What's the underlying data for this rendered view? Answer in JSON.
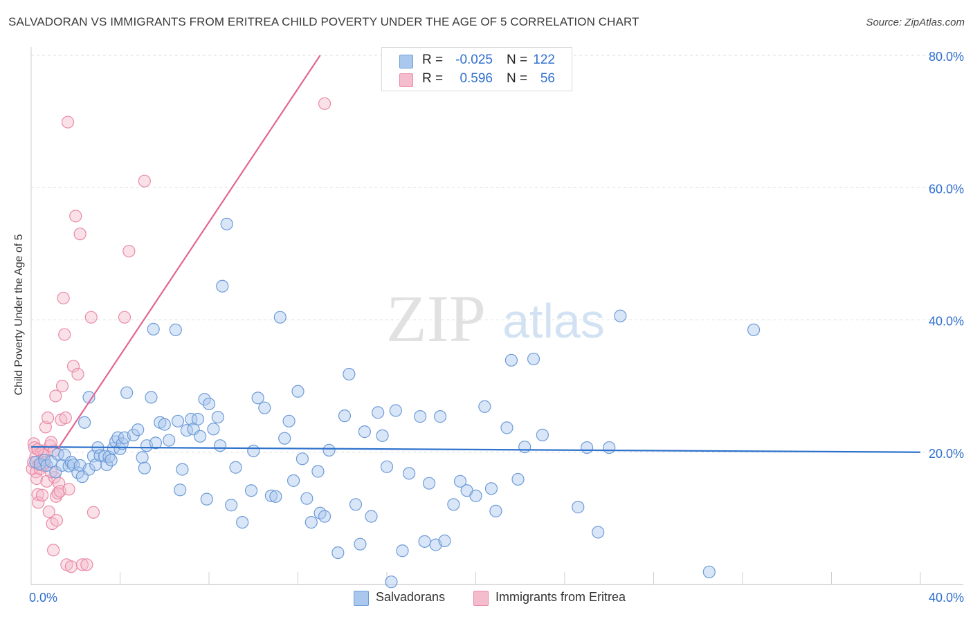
{
  "title": "SALVADORAN VS IMMIGRANTS FROM ERITREA CHILD POVERTY UNDER THE AGE OF 5 CORRELATION CHART",
  "source": "Source: ZipAtlas.com",
  "watermark": {
    "zip": "ZIP",
    "atlas": "atlas"
  },
  "legend_top": [
    {
      "r_label": "R =",
      "r_value": "-0.025",
      "n_label": "N =",
      "n_value": "122"
    },
    {
      "r_label": "R =",
      "r_value": "0.596",
      "n_label": "N =",
      "n_value": "56"
    }
  ],
  "legend_bottom": [
    {
      "label": "Salvadorans"
    },
    {
      "label": "Immigrants from Eritrea"
    }
  ],
  "colors": {
    "blue_fill": "#aac8ee",
    "blue_stroke": "#6d9bd8",
    "blue_line": "#2e72cc",
    "pink_fill": "#f5bccd",
    "pink_stroke": "#ea8aa7",
    "pink_line": "#e26592",
    "axis_text": "#2f6fcf",
    "grid": "#dddddd"
  },
  "chart_data": {
    "type": "scatter",
    "title": "SALVADORAN VS IMMIGRANTS FROM ERITREA CHILD POVERTY UNDER THE AGE OF 5 CORRELATION CHART",
    "xlabel": "",
    "ylabel": "Child Poverty Under the Age of 5",
    "xlim": [
      0,
      40
    ],
    "ylim": [
      0,
      80
    ],
    "x_tick_labels": [
      "0.0%",
      "40.0%"
    ],
    "y_tick_labels": [
      "20.0%",
      "40.0%",
      "60.0%",
      "80.0%"
    ],
    "y_tick_values": [
      20,
      40,
      60,
      80
    ],
    "grid": true,
    "series": [
      {
        "name": "Salvadorans",
        "color": "#aac8ee",
        "trendline": {
          "x": [
            0,
            40
          ],
          "y": [
            20.8,
            20.0
          ]
        },
        "points": [
          [
            0.2,
            18.5
          ],
          [
            0.4,
            18.2
          ],
          [
            0.6,
            18.8
          ],
          [
            0.7,
            18.0
          ],
          [
            0.9,
            18.6
          ],
          [
            1.1,
            17.0
          ],
          [
            1.2,
            19.7
          ],
          [
            1.4,
            18.0
          ],
          [
            1.5,
            19.6
          ],
          [
            1.7,
            17.9
          ],
          [
            1.8,
            18.5
          ],
          [
            1.9,
            18.1
          ],
          [
            2.1,
            16.9
          ],
          [
            2.2,
            18.0
          ],
          [
            2.3,
            16.3
          ],
          [
            2.4,
            24.5
          ],
          [
            2.6,
            17.4
          ],
          [
            2.6,
            28.3
          ],
          [
            2.8,
            19.4
          ],
          [
            2.9,
            18.1
          ],
          [
            3.0,
            20.7
          ],
          [
            3.1,
            19.5
          ],
          [
            3.3,
            19.4
          ],
          [
            3.4,
            18.1
          ],
          [
            3.5,
            19.3
          ],
          [
            3.6,
            18.8
          ],
          [
            3.7,
            20.6
          ],
          [
            3.8,
            21.6
          ],
          [
            3.9,
            22.2
          ],
          [
            4.0,
            20.5
          ],
          [
            4.1,
            21.3
          ],
          [
            4.2,
            22.2
          ],
          [
            4.3,
            29.0
          ],
          [
            4.6,
            22.6
          ],
          [
            4.8,
            23.4
          ],
          [
            5.0,
            19.2
          ],
          [
            5.1,
            17.6
          ],
          [
            5.2,
            21.0
          ],
          [
            5.4,
            28.3
          ],
          [
            5.5,
            38.6
          ],
          [
            5.6,
            21.4
          ],
          [
            5.8,
            24.5
          ],
          [
            6.0,
            24.2
          ],
          [
            6.2,
            21.8
          ],
          [
            6.5,
            38.5
          ],
          [
            6.6,
            24.7
          ],
          [
            6.7,
            14.3
          ],
          [
            6.8,
            17.4
          ],
          [
            7.0,
            23.3
          ],
          [
            7.2,
            25.0
          ],
          [
            7.3,
            23.5
          ],
          [
            7.5,
            25.0
          ],
          [
            7.6,
            22.4
          ],
          [
            7.8,
            28.0
          ],
          [
            7.9,
            12.9
          ],
          [
            8.0,
            27.3
          ],
          [
            8.2,
            23.5
          ],
          [
            8.4,
            25.3
          ],
          [
            8.5,
            21.0
          ],
          [
            8.6,
            45.1
          ],
          [
            8.8,
            54.5
          ],
          [
            9.0,
            12.0
          ],
          [
            9.2,
            17.7
          ],
          [
            9.5,
            9.4
          ],
          [
            9.9,
            14.2
          ],
          [
            10.0,
            20.2
          ],
          [
            10.2,
            28.2
          ],
          [
            10.5,
            26.7
          ],
          [
            10.8,
            13.4
          ],
          [
            11.0,
            13.3
          ],
          [
            11.2,
            40.4
          ],
          [
            11.4,
            22.1
          ],
          [
            11.6,
            24.7
          ],
          [
            11.8,
            15.7
          ],
          [
            12.0,
            29.2
          ],
          [
            12.2,
            19.0
          ],
          [
            12.4,
            13.0
          ],
          [
            12.6,
            9.4
          ],
          [
            12.9,
            17.1
          ],
          [
            13.0,
            10.8
          ],
          [
            13.2,
            10.3
          ],
          [
            13.4,
            20.3
          ],
          [
            13.8,
            4.8
          ],
          [
            14.1,
            25.5
          ],
          [
            14.3,
            31.8
          ],
          [
            14.6,
            12.1
          ],
          [
            14.8,
            6.1
          ],
          [
            15.0,
            23.1
          ],
          [
            15.3,
            10.3
          ],
          [
            15.6,
            26.0
          ],
          [
            15.8,
            22.5
          ],
          [
            16.0,
            17.8
          ],
          [
            16.2,
            0.4
          ],
          [
            16.4,
            26.3
          ],
          [
            16.7,
            5.1
          ],
          [
            17.0,
            16.8
          ],
          [
            17.5,
            25.4
          ],
          [
            17.7,
            6.5
          ],
          [
            17.9,
            15.3
          ],
          [
            18.2,
            6.0
          ],
          [
            18.4,
            25.4
          ],
          [
            18.6,
            6.6
          ],
          [
            19.0,
            12.1
          ],
          [
            19.3,
            15.6
          ],
          [
            19.6,
            14.2
          ],
          [
            20.0,
            13.4
          ],
          [
            20.4,
            26.9
          ],
          [
            20.7,
            14.5
          ],
          [
            20.9,
            11.1
          ],
          [
            21.4,
            23.7
          ],
          [
            21.6,
            33.9
          ],
          [
            21.9,
            15.9
          ],
          [
            22.2,
            20.8
          ],
          [
            22.6,
            34.1
          ],
          [
            23.0,
            22.6
          ],
          [
            24.6,
            11.7
          ],
          [
            25.0,
            20.7
          ],
          [
            25.5,
            7.9
          ],
          [
            26.0,
            20.7
          ],
          [
            26.5,
            40.6
          ],
          [
            30.5,
            1.9
          ],
          [
            32.5,
            38.5
          ]
        ]
      },
      {
        "name": "Immigrants from Eritrea",
        "color": "#f5bccd",
        "trendline": {
          "x": [
            1.2,
            13.0
          ],
          "y": [
            20.5,
            80.0
          ]
        },
        "points": [
          [
            0.05,
            17.5
          ],
          [
            0.1,
            18.5
          ],
          [
            0.12,
            21.3
          ],
          [
            0.15,
            20.7
          ],
          [
            0.2,
            19.3
          ],
          [
            0.22,
            17.0
          ],
          [
            0.25,
            16.0
          ],
          [
            0.3,
            13.6
          ],
          [
            0.32,
            12.4
          ],
          [
            0.35,
            18.1
          ],
          [
            0.4,
            17.5
          ],
          [
            0.45,
            20.0
          ],
          [
            0.5,
            13.5
          ],
          [
            0.55,
            20.2
          ],
          [
            0.6,
            19.6
          ],
          [
            0.62,
            18.4
          ],
          [
            0.65,
            23.8
          ],
          [
            0.7,
            15.6
          ],
          [
            0.75,
            25.2
          ],
          [
            0.8,
            11.0
          ],
          [
            0.85,
            21.0
          ],
          [
            0.9,
            21.5
          ],
          [
            0.95,
            9.2
          ],
          [
            1.0,
            5.2
          ],
          [
            1.02,
            20.2
          ],
          [
            1.05,
            16.2
          ],
          [
            1.1,
            28.5
          ],
          [
            1.12,
            13.3
          ],
          [
            1.15,
            9.7
          ],
          [
            1.2,
            13.8
          ],
          [
            1.25,
            15.3
          ],
          [
            1.3,
            14.1
          ],
          [
            1.35,
            24.9
          ],
          [
            1.4,
            30.0
          ],
          [
            1.45,
            43.3
          ],
          [
            1.5,
            37.8
          ],
          [
            1.55,
            25.2
          ],
          [
            1.6,
            3.0
          ],
          [
            1.65,
            69.9
          ],
          [
            1.7,
            14.4
          ],
          [
            1.8,
            2.7
          ],
          [
            1.9,
            33.0
          ],
          [
            2.0,
            55.7
          ],
          [
            2.1,
            31.8
          ],
          [
            2.2,
            53.0
          ],
          [
            2.3,
            3.0
          ],
          [
            2.5,
            3.0
          ],
          [
            2.7,
            40.4
          ],
          [
            2.8,
            10.9
          ],
          [
            4.2,
            40.4
          ],
          [
            4.4,
            50.4
          ],
          [
            5.1,
            61.0
          ],
          [
            13.2,
            72.7
          ],
          [
            0.3,
            20.4
          ],
          [
            0.55,
            18.0
          ],
          [
            0.9,
            17.0
          ]
        ]
      }
    ]
  }
}
